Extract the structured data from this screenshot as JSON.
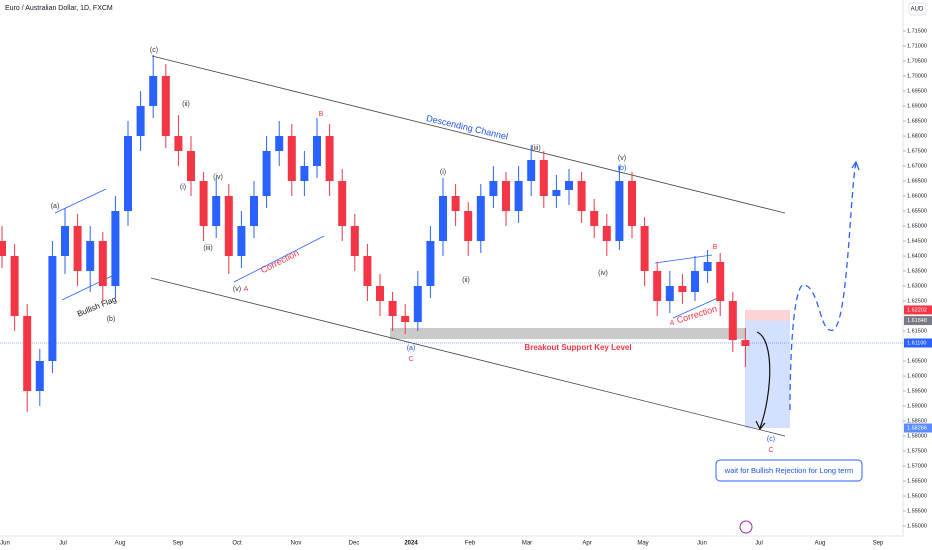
{
  "chart_data": {
    "type": "candlestick",
    "title": "Euro / Australian Dollar, 1D, FXCM",
    "currency": "AUD",
    "categories": [
      "Jun",
      "Jul",
      "Aug",
      "Sep",
      "Oct",
      "Nov",
      "Dec",
      "2024",
      "Feb",
      "Mar",
      "Apr",
      "May",
      "Jun",
      "Jul",
      "Aug",
      "Sep"
    ],
    "up_color": "#2962ff",
    "down_color": "#f23645",
    "ohlc": [
      [
        1.645,
        1.65,
        1.636,
        1.64
      ],
      [
        1.64,
        1.644,
        1.615,
        1.62
      ],
      [
        1.62,
        1.624,
        1.588,
        1.595
      ],
      [
        1.595,
        1.609,
        1.59,
        1.605
      ],
      [
        1.605,
        1.645,
        1.601,
        1.64
      ],
      [
        1.64,
        1.656,
        1.634,
        1.65
      ],
      [
        1.65,
        1.654,
        1.63,
        1.635
      ],
      [
        1.635,
        1.65,
        1.628,
        1.645
      ],
      [
        1.645,
        1.648,
        1.625,
        1.63
      ],
      [
        1.63,
        1.66,
        1.626,
        1.655
      ],
      [
        1.655,
        1.685,
        1.65,
        1.68
      ],
      [
        1.68,
        1.695,
        1.675,
        1.69
      ],
      [
        1.69,
        1.707,
        1.686,
        1.7
      ],
      [
        1.7,
        1.704,
        1.676,
        1.68
      ],
      [
        1.68,
        1.687,
        1.67,
        1.675
      ],
      [
        1.675,
        1.68,
        1.66,
        1.665
      ],
      [
        1.665,
        1.668,
        1.645,
        1.65
      ],
      [
        1.65,
        1.666,
        1.646,
        1.66
      ],
      [
        1.66,
        1.664,
        1.634,
        1.64
      ],
      [
        1.64,
        1.655,
        1.636,
        1.65
      ],
      [
        1.65,
        1.665,
        1.646,
        1.66
      ],
      [
        1.66,
        1.68,
        1.656,
        1.675
      ],
      [
        1.675,
        1.685,
        1.67,
        1.68
      ],
      [
        1.68,
        1.684,
        1.66,
        1.665
      ],
      [
        1.665,
        1.675,
        1.66,
        1.67
      ],
      [
        1.67,
        1.686,
        1.666,
        1.68
      ],
      [
        1.68,
        1.684,
        1.66,
        1.665
      ],
      [
        1.665,
        1.669,
        1.645,
        1.65
      ],
      [
        1.65,
        1.654,
        1.635,
        1.64
      ],
      [
        1.64,
        1.644,
        1.625,
        1.63
      ],
      [
        1.63,
        1.634,
        1.62,
        1.625
      ],
      [
        1.625,
        1.628,
        1.615,
        1.62
      ],
      [
        1.62,
        1.624,
        1.614,
        1.618
      ],
      [
        1.618,
        1.635,
        1.615,
        1.63
      ],
      [
        1.63,
        1.65,
        1.626,
        1.645
      ],
      [
        1.645,
        1.666,
        1.64,
        1.66
      ],
      [
        1.66,
        1.664,
        1.65,
        1.655
      ],
      [
        1.655,
        1.658,
        1.64,
        1.645
      ],
      [
        1.645,
        1.664,
        1.641,
        1.66
      ],
      [
        1.66,
        1.67,
        1.656,
        1.665
      ],
      [
        1.665,
        1.668,
        1.65,
        1.655
      ],
      [
        1.655,
        1.67,
        1.651,
        1.665
      ],
      [
        1.665,
        1.677,
        1.66,
        1.672
      ],
      [
        1.672,
        1.675,
        1.656,
        1.66
      ],
      [
        1.66,
        1.667,
        1.656,
        1.662
      ],
      [
        1.662,
        1.669,
        1.657,
        1.665
      ],
      [
        1.665,
        1.668,
        1.651,
        1.655
      ],
      [
        1.655,
        1.659,
        1.646,
        1.65
      ],
      [
        1.65,
        1.654,
        1.64,
        1.645
      ],
      [
        1.645,
        1.67,
        1.642,
        1.665
      ],
      [
        1.665,
        1.668,
        1.646,
        1.65
      ],
      [
        1.65,
        1.653,
        1.63,
        1.635
      ],
      [
        1.635,
        1.638,
        1.62,
        1.625
      ],
      [
        1.625,
        1.635,
        1.621,
        1.63
      ],
      [
        1.63,
        1.634,
        1.624,
        1.628
      ],
      [
        1.628,
        1.64,
        1.625,
        1.635
      ],
      [
        1.635,
        1.642,
        1.631,
        1.638
      ],
      [
        1.638,
        1.641,
        1.62,
        1.625
      ],
      [
        1.625,
        1.628,
        1.608,
        1.612
      ],
      [
        1.612,
        1.616,
        1.603,
        1.61
      ]
    ],
    "ylim": [
      1.55,
      1.722
    ],
    "yticks": [
      {
        "value": 1.55,
        "label": "1.55000"
      },
      {
        "value": 1.555,
        "label": "1.55500"
      },
      {
        "value": 1.56,
        "label": "1.56000"
      },
      {
        "value": 1.565,
        "label": "1.56500"
      },
      {
        "value": 1.57,
        "label": "1.57000"
      },
      {
        "value": 1.575,
        "label": "1.57500"
      },
      {
        "value": 1.58,
        "label": "1.58000"
      },
      {
        "value": 1.585,
        "label": "1.58500"
      },
      {
        "value": 1.59,
        "label": "1.59000"
      },
      {
        "value": 1.595,
        "label": "1.59500"
      },
      {
        "value": 1.6,
        "label": "1.60000"
      },
      {
        "value": 1.605,
        "label": "1.60500"
      },
      {
        "value": 1.615,
        "label": "1.61500"
      },
      {
        "value": 1.625,
        "label": "1.62500"
      },
      {
        "value": 1.63,
        "label": "1.63000"
      },
      {
        "value": 1.635,
        "label": "1.63500"
      },
      {
        "value": 1.64,
        "label": "1.64000"
      },
      {
        "value": 1.645,
        "label": "1.64500"
      },
      {
        "value": 1.65,
        "label": "1.65000"
      },
      {
        "value": 1.655,
        "label": "1.65500"
      },
      {
        "value": 1.66,
        "label": "1.66000"
      },
      {
        "value": 1.665,
        "label": "1.66500"
      },
      {
        "value": 1.67,
        "label": "1.67000"
      },
      {
        "value": 1.675,
        "label": "1.67500"
      },
      {
        "value": 1.68,
        "label": "1.68000"
      },
      {
        "value": 1.685,
        "label": "1.68500"
      },
      {
        "value": 1.69,
        "label": "1.69000"
      },
      {
        "value": 1.695,
        "label": "1.69500"
      },
      {
        "value": 1.7,
        "label": "1.70000"
      },
      {
        "value": 1.705,
        "label": "1.70500"
      },
      {
        "value": 1.71,
        "label": "1.71000"
      },
      {
        "value": 1.715,
        "label": "1.71500"
      }
    ],
    "price_markers": [
      {
        "value": 1.62202,
        "label": "1.62202"
      },
      {
        "value": 1.61848,
        "label": "1.61848"
      },
      {
        "value": 1.611,
        "label": "1.61100"
      },
      {
        "value": 1.58266,
        "label": "1.58266"
      }
    ],
    "annotations": [
      "(c)",
      "(ii)",
      "(i)",
      "(iv)",
      "(iii)",
      "(v)",
      "A",
      "B",
      "Correction",
      "Descending Channel",
      "(i)",
      "(ii)",
      "(iii)",
      "(iv)",
      "(v)",
      "(b)",
      "(a)",
      "C",
      "A",
      "Correction",
      "B",
      "Breakout Support Key Level",
      "(c)",
      "C",
      "(a)",
      "(b)",
      "Bullish Flag",
      "wait for Bullish Rejection for Long term"
    ]
  }
}
